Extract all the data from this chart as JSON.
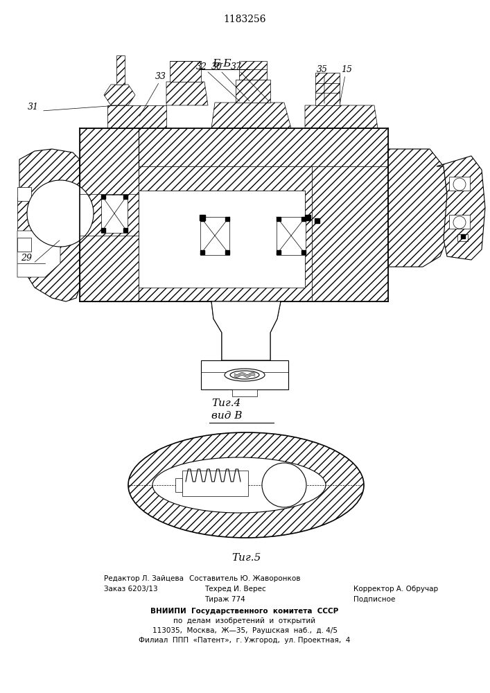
{
  "patent_number": "1183256",
  "fig4_label": "Τиг.4",
  "vid_label": "вид В",
  "fig5_label": "Τиг.5",
  "section_label": "Б-Б",
  "bg_color": "#ffffff",
  "line_color": "#000000",
  "footer_col1_line1": "Редактор Л. Зайцева",
  "footer_col1_line2": "Заказ 6203/13",
  "footer_col2_line1": "Составитель Ю. Жаворонков",
  "footer_col2_line2": "Техред И. Верес",
  "footer_col2_line3": "Тираж 774",
  "footer_col3_line1": "Корректор А. Обручар",
  "footer_col3_line2": "Подписное",
  "footer_vniipii_1": "ВНИИПИ  Государственного  комитета  СССР",
  "footer_vniipii_2": "по  делам  изобретений  и  открытий",
  "footer_vniipii_3": "113035,  Москва,  Ж—35,  Раушская  наб.,  д. 4/5",
  "footer_vniipii_4": "Филиал  ППП  «Патент»,  г. Ужгород,  ул. Проектная,  4"
}
